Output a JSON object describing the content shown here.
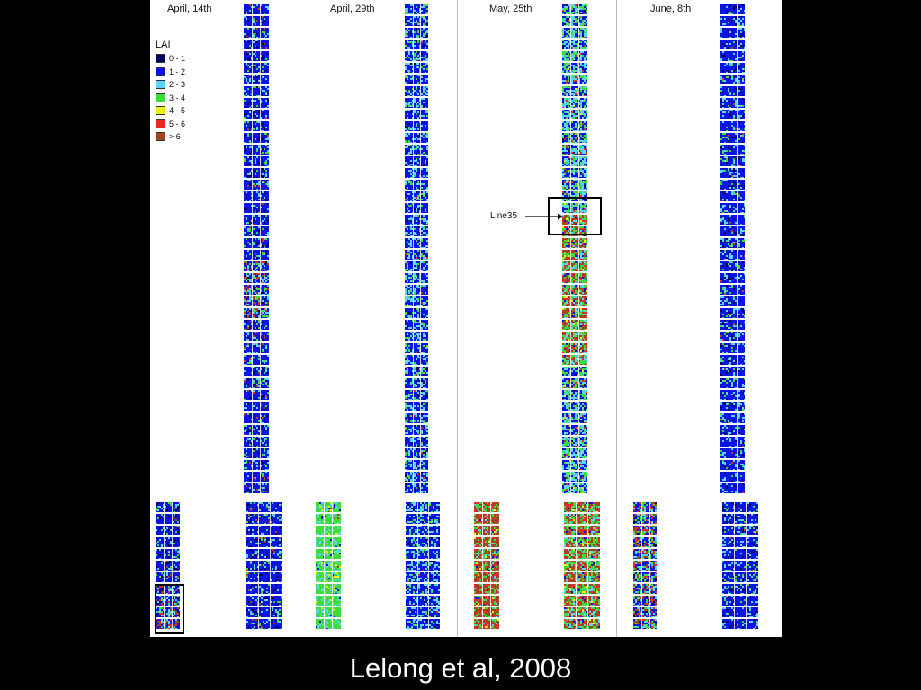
{
  "panels": [
    {
      "date": "April, 14th",
      "palette": {
        "db": 0.08,
        "b": 0.74,
        "c": 0.1,
        "g": 0.05,
        "y": 0.0,
        "r": 0.01,
        "br": 0.02
      },
      "tail_palette": {
        "db": 0.05,
        "b": 0.45,
        "c": 0.2,
        "g": 0.1,
        "y": 0.0,
        "r": 0.08,
        "br": 0.12
      }
    },
    {
      "date": "April, 29th",
      "palette": {
        "db": 0.04,
        "b": 0.62,
        "c": 0.25,
        "g": 0.08,
        "y": 0.0,
        "r": 0.005,
        "br": 0.005
      },
      "left_palette": {
        "db": 0.0,
        "b": 0.03,
        "c": 0.22,
        "g": 0.7,
        "y": 0.04,
        "r": 0.0,
        "br": 0.01
      }
    },
    {
      "date": "May, 25th",
      "palette_top": {
        "db": 0.02,
        "b": 0.35,
        "c": 0.35,
        "g": 0.22,
        "y": 0.01,
        "r": 0.03,
        "br": 0.02
      },
      "palette_mid": {
        "db": 0.0,
        "b": 0.05,
        "c": 0.12,
        "g": 0.33,
        "y": 0.04,
        "r": 0.18,
        "br": 0.28
      },
      "left_palette": {
        "db": 0.0,
        "b": 0.02,
        "c": 0.06,
        "g": 0.18,
        "y": 0.03,
        "r": 0.25,
        "br": 0.46
      }
    },
    {
      "date": "June, 8th",
      "palette": {
        "db": 0.08,
        "b": 0.72,
        "c": 0.14,
        "g": 0.05,
        "y": 0.0,
        "r": 0.005,
        "br": 0.005
      },
      "left_palette": {
        "db": 0.04,
        "b": 0.38,
        "c": 0.15,
        "g": 0.15,
        "y": 0.0,
        "r": 0.14,
        "br": 0.14
      }
    }
  ],
  "legend": {
    "title": "LAI",
    "items": [
      {
        "label": "0 - 1",
        "color": "#00005a"
      },
      {
        "label": "1 - 2",
        "color": "#0a14e6"
      },
      {
        "label": "2 - 3",
        "color": "#5ad7f5"
      },
      {
        "label": "3 - 4",
        "color": "#3cdc3c"
      },
      {
        "label": "4 - 5",
        "color": "#f0f014"
      },
      {
        "label": "5 - 6",
        "color": "#e62828"
      },
      {
        "label": "> 6",
        "color": "#a0461e"
      }
    ]
  },
  "annotation": {
    "label": "Line35"
  },
  "caption": "Lelong et al, 2008"
}
